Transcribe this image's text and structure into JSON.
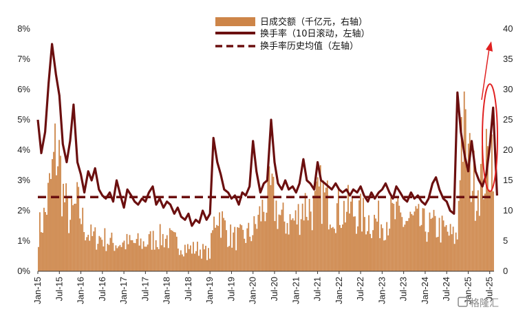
{
  "chart_data": {
    "type": "bar+line",
    "legend": [
      {
        "label": "日成交额（千亿元，右轴）",
        "kind": "bar",
        "color": "#CD8548"
      },
      {
        "label": "换手率（10日滚动，左轴）",
        "kind": "line",
        "color": "#6B0F0F"
      },
      {
        "label": "换手率历史均值（左轴）",
        "kind": "dashed-line",
        "color": "#6B0F0F"
      }
    ],
    "x_ticks": [
      "Jan-15",
      "Jul-15",
      "Jan-16",
      "Jul-16",
      "Jan-17",
      "Jul-17",
      "Jan-18",
      "Jul-18",
      "Jan-19",
      "Jul-19",
      "Jan-20",
      "Jul-20",
      "Jan-21",
      "Jul-21",
      "Jan-22",
      "Jul-22",
      "Jan-23",
      "Jul-23",
      "Jan-24",
      "Jul-24",
      "Jan-25",
      "Jul-25"
    ],
    "y_left": {
      "ticks": [
        "0%",
        "1%",
        "2%",
        "3%",
        "4%",
        "5%",
        "6%",
        "7%",
        "8%"
      ],
      "min": 0,
      "max": 8
    },
    "y_right": {
      "ticks": [
        "0",
        "5",
        "10",
        "15",
        "20",
        "25",
        "30",
        "35",
        "40"
      ],
      "min": 0,
      "max": 40
    },
    "turnover_mean": 2.45,
    "turnover_series": {
      "name": "换手率（10日滚动，左轴）",
      "x": [
        2015.0,
        2015.08,
        2015.17,
        2015.25,
        2015.33,
        2015.42,
        2015.5,
        2015.58,
        2015.67,
        2015.75,
        2015.83,
        2015.92,
        2016.0,
        2016.08,
        2016.17,
        2016.25,
        2016.33,
        2016.42,
        2016.5,
        2016.58,
        2016.67,
        2016.75,
        2016.83,
        2016.92,
        2017.0,
        2017.08,
        2017.17,
        2017.25,
        2017.33,
        2017.42,
        2017.5,
        2017.58,
        2017.67,
        2017.75,
        2017.83,
        2017.92,
        2018.0,
        2018.08,
        2018.17,
        2018.25,
        2018.33,
        2018.42,
        2018.5,
        2018.58,
        2018.67,
        2018.75,
        2018.83,
        2018.92,
        2019.0,
        2019.08,
        2019.17,
        2019.25,
        2019.33,
        2019.42,
        2019.5,
        2019.58,
        2019.67,
        2019.75,
        2019.83,
        2019.92,
        2020.0,
        2020.08,
        2020.17,
        2020.25,
        2020.33,
        2020.42,
        2020.5,
        2020.58,
        2020.67,
        2020.75,
        2020.83,
        2020.92,
        2021.0,
        2021.08,
        2021.17,
        2021.25,
        2021.33,
        2021.42,
        2021.5,
        2021.58,
        2021.67,
        2021.75,
        2021.83,
        2021.92,
        2022.0,
        2022.08,
        2022.17,
        2022.25,
        2022.33,
        2022.42,
        2022.5,
        2022.58,
        2022.67,
        2022.75,
        2022.83,
        2022.92,
        2023.0,
        2023.08,
        2023.17,
        2023.25,
        2023.33,
        2023.42,
        2023.5,
        2023.58,
        2023.67,
        2023.75,
        2023.83,
        2023.92,
        2024.0,
        2024.08,
        2024.17,
        2024.25,
        2024.33,
        2024.42,
        2024.5,
        2024.58,
        2024.67,
        2024.75,
        2024.83,
        2024.92,
        2025.0,
        2025.08,
        2025.17,
        2025.25,
        2025.33,
        2025.42,
        2025.5,
        2025.58,
        2025.67
      ],
      "values": [
        5.0,
        3.9,
        4.6,
        6.2,
        7.5,
        6.5,
        5.8,
        4.2,
        3.6,
        4.3,
        5.5,
        3.6,
        3.2,
        2.6,
        3.3,
        3.0,
        3.4,
        2.7,
        2.5,
        2.4,
        2.6,
        2.3,
        3.0,
        2.5,
        2.1,
        2.7,
        2.5,
        2.3,
        2.2,
        2.4,
        2.3,
        2.6,
        2.8,
        2.2,
        2.4,
        2.1,
        2.3,
        2.2,
        1.9,
        2.1,
        1.8,
        1.7,
        1.9,
        1.5,
        1.7,
        1.6,
        2.0,
        1.7,
        1.9,
        4.4,
        3.6,
        3.2,
        2.7,
        2.6,
        2.4,
        2.5,
        2.2,
        2.6,
        2.5,
        2.8,
        4.3,
        3.3,
        2.6,
        2.9,
        3.0,
        5.0,
        3.6,
        2.9,
        2.7,
        3.0,
        2.7,
        2.8,
        2.6,
        2.9,
        3.7,
        3.0,
        2.9,
        2.7,
        3.6,
        3.0,
        2.9,
        2.8,
        2.7,
        2.9,
        2.7,
        2.6,
        2.7,
        2.5,
        2.7,
        2.6,
        2.8,
        2.5,
        2.3,
        2.6,
        2.4,
        2.6,
        2.7,
        2.9,
        2.6,
        2.4,
        2.8,
        2.6,
        2.4,
        2.3,
        2.6,
        2.4,
        2.5,
        2.3,
        2.2,
        2.4,
        2.9,
        3.1,
        2.7,
        2.4,
        2.3,
        2.0,
        1.9,
        5.9,
        4.6,
        3.8,
        3.3,
        4.3,
        3.3,
        3.0,
        2.8,
        3.2,
        4.1,
        5.4,
        2.5
      ]
    },
    "volume_series": {
      "name": "日成交额（千亿元，右轴）",
      "x": [
        2015.0,
        2015.17,
        2015.33,
        2015.42,
        2015.5,
        2015.58,
        2015.75,
        2015.92,
        2016.08,
        2016.25,
        2016.5,
        2016.75,
        2017.0,
        2017.25,
        2017.5,
        2017.75,
        2018.0,
        2018.25,
        2018.5,
        2018.75,
        2019.0,
        2019.08,
        2019.17,
        2019.33,
        2019.5,
        2019.75,
        2020.0,
        2020.17,
        2020.42,
        2020.5,
        2020.67,
        2021.0,
        2021.17,
        2021.42,
        2021.58,
        2021.75,
        2022.0,
        2022.25,
        2022.5,
        2022.75,
        2023.0,
        2023.25,
        2023.5,
        2023.75,
        2024.0,
        2024.25,
        2024.5,
        2024.67,
        2024.75,
        2024.83,
        2024.92,
        2025.0,
        2025.17,
        2025.33,
        2025.5,
        2025.67
      ],
      "values": [
        7,
        10,
        17,
        22,
        20,
        14,
        9,
        12,
        8,
        6,
        6,
        5,
        5,
        5,
        5,
        6,
        6,
        5,
        4,
        4,
        3,
        8,
        11,
        8,
        6,
        6,
        7,
        10,
        14,
        12,
        9,
        9,
        12,
        11,
        14,
        12,
        11,
        11,
        10,
        9,
        9,
        10,
        9,
        9,
        8,
        8,
        7,
        6,
        6,
        26,
        24,
        20,
        15,
        17,
        20,
        27
      ]
    }
  },
  "watermark": "格隆汇"
}
